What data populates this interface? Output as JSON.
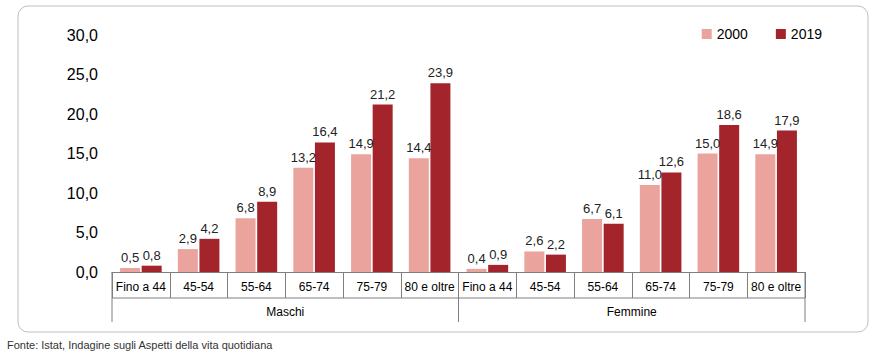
{
  "chart_data": {
    "type": "bar",
    "source": "Fonte: Istat, Indagine sugli Aspetti della vita quotidiana",
    "categories": [
      "Fino a 44",
      "45-54",
      "55-64",
      "65-74",
      "75-79",
      "80 e oltre",
      "Fino a 44",
      "45-54",
      "55-64",
      "65-74",
      "75-79",
      "80 e oltre"
    ],
    "category_groups": [
      {
        "label": "Maschi",
        "size": 6
      },
      {
        "label": "Femmine",
        "size": 6
      }
    ],
    "series": [
      {
        "name": "2000",
        "color": "#eba39d",
        "values": [
          0.5,
          2.9,
          6.8,
          13.2,
          14.9,
          14.4,
          0.4,
          2.6,
          6.7,
          11.0,
          15.0,
          14.9
        ],
        "value_labels": [
          "0,5",
          "2,9",
          "6,8",
          "13,2",
          "14,9",
          "14,4",
          "0,4",
          "2,6",
          "6,7",
          "11,0",
          "15,0",
          "14,9"
        ]
      },
      {
        "name": "2019",
        "color": "#a3242b",
        "values": [
          0.8,
          4.2,
          8.9,
          16.4,
          21.2,
          23.9,
          0.9,
          2.2,
          6.1,
          12.6,
          18.6,
          17.9
        ],
        "value_labels": [
          "0,8",
          "4,2",
          "8,9",
          "16,4",
          "21,2",
          "23,9",
          "0,9",
          "2,2",
          "6,1",
          "12,6",
          "18,6",
          "17,9"
        ]
      }
    ],
    "ylim": [
      0,
      30
    ],
    "yticks": [
      {
        "value": 0,
        "label": "0,0"
      },
      {
        "value": 5,
        "label": "5,0"
      },
      {
        "value": 10,
        "label": "10,0"
      },
      {
        "value": 15,
        "label": "15,0"
      },
      {
        "value": 20,
        "label": "20,0"
      },
      {
        "value": 25,
        "label": "25,0"
      },
      {
        "value": 30,
        "label": "30,0"
      }
    ],
    "grid": false,
    "legend": "top-right",
    "data_labels": true
  }
}
